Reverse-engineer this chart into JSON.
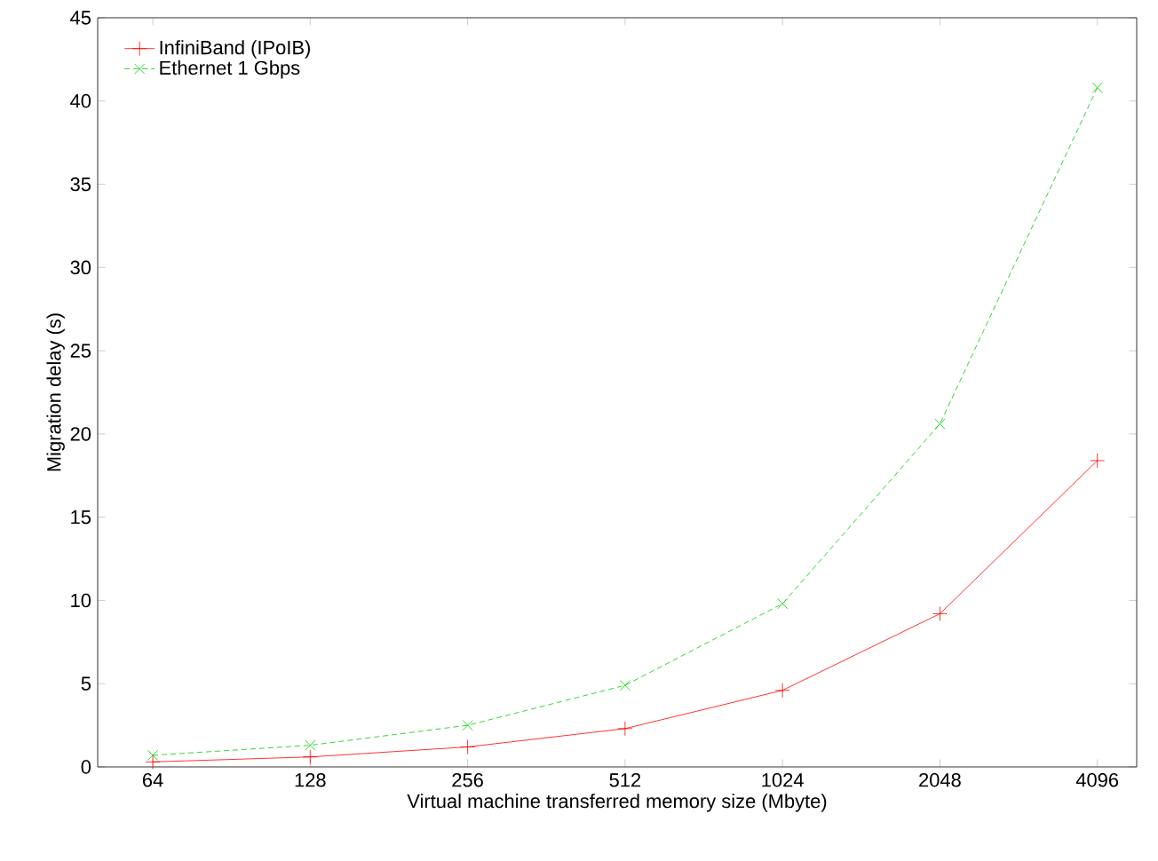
{
  "chart_data": {
    "type": "line",
    "xlabel": "Virtual machine transferred memory size (Mbyte)",
    "ylabel": "Migration delay (s)",
    "categories": [
      "64",
      "128",
      "256",
      "512",
      "1024",
      "2048",
      "4096"
    ],
    "series": [
      {
        "name": "InfiniBand (IPoIB)",
        "color": "#ff0000",
        "marker": "plus",
        "line_style": "solid",
        "values": [
          0.3,
          0.6,
          1.2,
          2.3,
          4.6,
          9.2,
          18.4
        ]
      },
      {
        "name": "Ethernet 1 Gbps",
        "color": "#00cc00",
        "marker": "cross",
        "line_style": "dashed",
        "values": [
          0.7,
          1.3,
          2.5,
          4.9,
          9.8,
          20.6,
          40.8
        ]
      }
    ],
    "ylim": [
      0,
      45
    ],
    "yticks": [
      0,
      5,
      10,
      15,
      20,
      25,
      30,
      35,
      40,
      45
    ],
    "legend": "top left",
    "grid": false
  }
}
